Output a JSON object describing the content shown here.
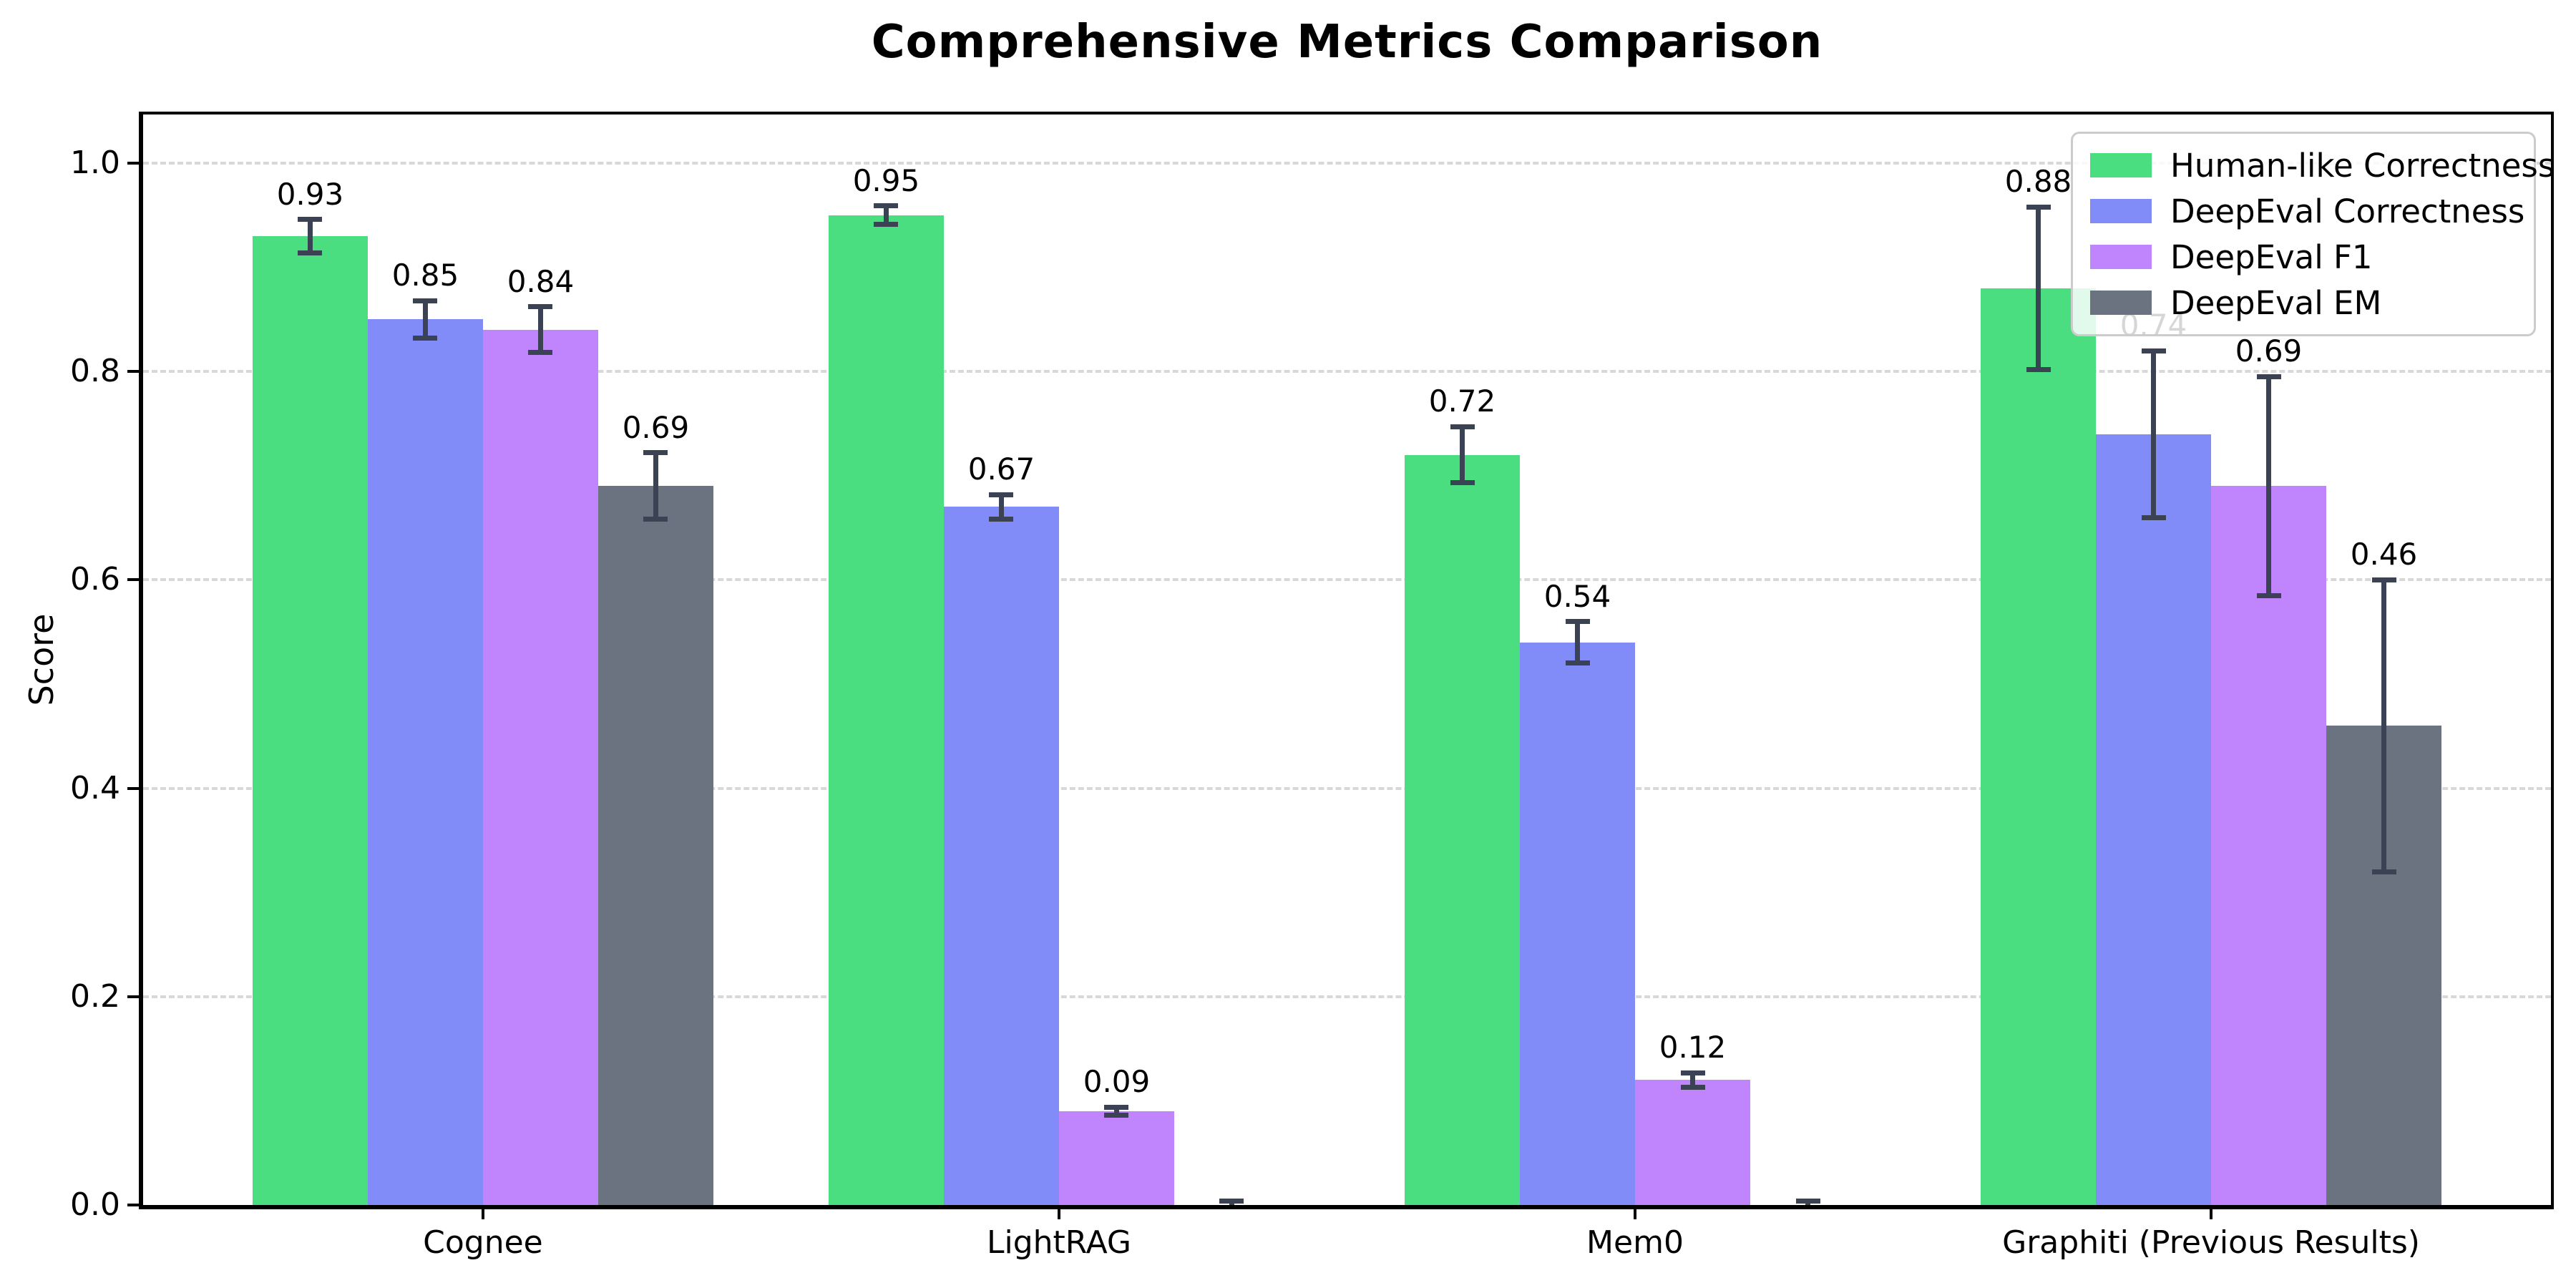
{
  "title": "Comprehensive Metrics Comparison",
  "chart_data": {
    "type": "bar",
    "title": "Comprehensive Metrics Comparison",
    "ylabel": "Score",
    "categories": [
      "Cognee",
      "LightRAG",
      "Mem0",
      "Graphiti (Previous Results)"
    ],
    "series": [
      {
        "name": "Human-like Correctness",
        "color": "#4ade80",
        "values": [
          0.93,
          0.95,
          0.72,
          0.88
        ],
        "errors": [
          0.016,
          0.009,
          0.027,
          0.078
        ],
        "bar_labels": [
          "0.93",
          "0.95",
          "0.72",
          "0.88"
        ]
      },
      {
        "name": "DeepEval Correctness",
        "color": "#818cf8",
        "values": [
          0.85,
          0.67,
          0.54,
          0.74
        ],
        "errors": [
          0.018,
          0.012,
          0.02,
          0.08
        ],
        "bar_labels": [
          "0.85",
          "0.67",
          "0.54",
          "0.74"
        ]
      },
      {
        "name": "DeepEval F1",
        "color": "#c084fc",
        "values": [
          0.84,
          0.09,
          0.12,
          0.69
        ],
        "errors": [
          0.022,
          0.004,
          0.007,
          0.105
        ],
        "bar_labels": [
          "0.84",
          "0.09",
          "0.12",
          "0.69"
        ]
      },
      {
        "name": "DeepEval EM",
        "color": "#6b7280",
        "values": [
          0.69,
          0.0,
          0.0,
          0.46
        ],
        "errors": [
          0.032,
          0.004,
          0.004,
          0.14
        ],
        "bar_labels": [
          "0.69",
          "",
          "",
          "0.46"
        ]
      }
    ],
    "yticks": [
      0.0,
      0.2,
      0.4,
      0.6,
      0.8,
      1.0
    ],
    "ytick_labels": [
      "0.0",
      "0.2",
      "0.4",
      "0.6",
      "0.8",
      "1.0"
    ],
    "ylim": [
      0.0,
      1.047
    ],
    "grid": {
      "axis": "y",
      "style": "dashed",
      "color": "#d8d8d8"
    },
    "legend": {
      "position": "upper right",
      "border_color": "#cccccc",
      "background": "rgba(255,255,255,0.84)"
    },
    "error_bar_color": "#3a4254",
    "bar_label_color": "#000000",
    "bar_width_fraction": 0.2,
    "group_size": 4
  }
}
